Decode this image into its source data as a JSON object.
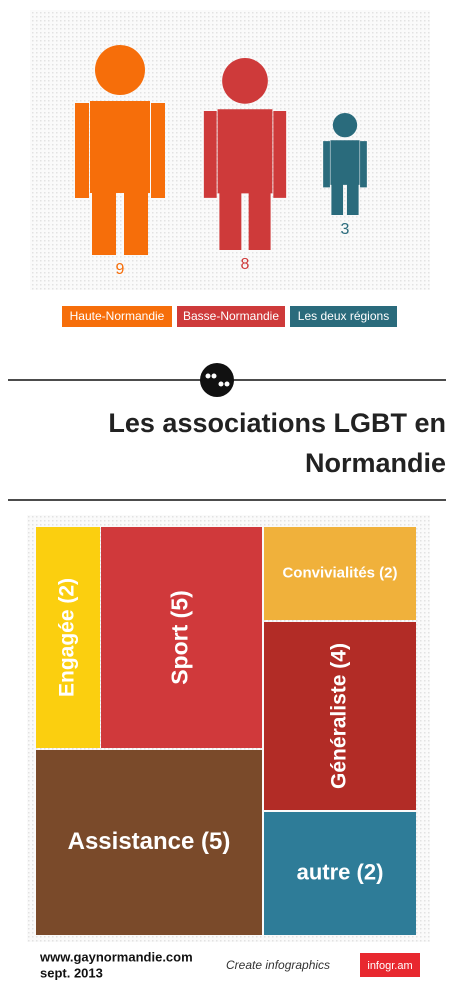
{
  "chart_data": [
    {
      "type": "pictogram",
      "series": [
        {
          "name": "Haute-Normandie",
          "color": "#f66e0a",
          "values": [
            9
          ]
        },
        {
          "name": "Basse-Normandie",
          "color": "#ce3a3a",
          "values": [
            8
          ]
        },
        {
          "name": "Les deux régions",
          "color": "#2a6b7c",
          "values": [
            3
          ]
        }
      ]
    },
    {
      "type": "treemap",
      "categories": [
        "Engagée (2)",
        "Sport (5)",
        "Convivialités (2)",
        "Généraliste (4)",
        "Assistance (5)",
        "autre (2)"
      ],
      "values": [
        2,
        5,
        2,
        4,
        5,
        2
      ],
      "colors": [
        "#fbcf0f",
        "#d0393b",
        "#f0b13b",
        "#b22c26",
        "#7a4a2a",
        "#2e7c98"
      ]
    }
  ],
  "title_lines": [
    "Les associations LGBT en",
    "Normandie"
  ],
  "footer": {
    "site": "www.gaynormandie.com",
    "date": "sept. 2013",
    "credit": "Create infographics",
    "brand": "infogr.am"
  }
}
